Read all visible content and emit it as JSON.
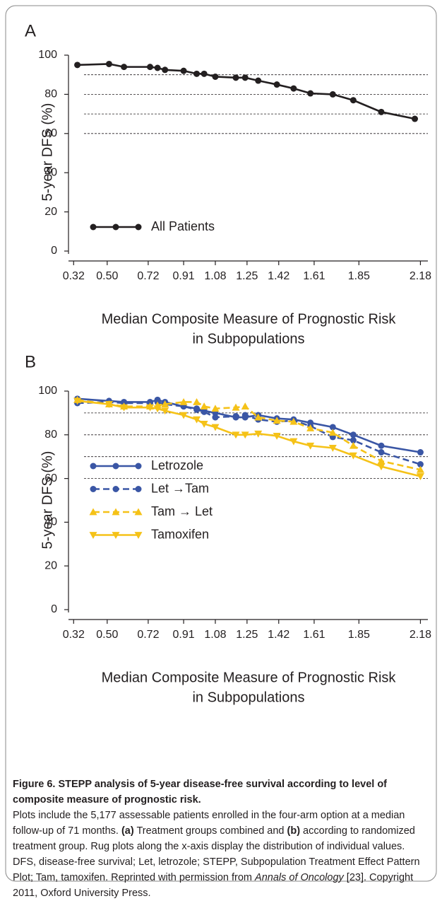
{
  "chart_data": [
    {
      "type": "line",
      "panel_label": "A",
      "ylabel": "5-year DFS (%)",
      "xlabel": [
        "Median Composite Measure of Prognostic Risk",
        "in Subpopulations"
      ],
      "x": [
        0.34,
        0.51,
        0.59,
        0.73,
        0.77,
        0.81,
        0.91,
        0.98,
        1.02,
        1.08,
        1.19,
        1.24,
        1.31,
        1.41,
        1.5,
        1.59,
        1.71,
        1.82,
        1.97,
        2.15
      ],
      "series": [
        {
          "name": "All Patients",
          "color": "#231f20",
          "dash": false,
          "marker": "circle",
          "values": [
            95,
            95.5,
            94,
            94,
            93.5,
            92.5,
            92,
            90.5,
            90.5,
            89,
            88.5,
            88.5,
            87,
            85,
            83,
            80.5,
            80,
            77,
            71,
            67.5
          ]
        }
      ],
      "xlim": [
        0.3,
        2.22
      ],
      "ylim": [
        0,
        100
      ],
      "xticks": [
        0.32,
        {
          "value": 0.5,
          "label": "0.50"
        },
        0.72,
        0.91,
        1.08,
        1.25,
        1.42,
        1.61,
        1.85,
        2.18
      ],
      "yticks": [
        0,
        20,
        40,
        60,
        80,
        100
      ],
      "reference_lines": [
        90,
        80,
        70,
        60
      ],
      "legend": "lower left"
    },
    {
      "type": "line",
      "panel_label": "B",
      "ylabel": "5-year DFS (%)",
      "xlabel": [
        "Median Composite Measure of Prognostic Risk",
        "in Subpopulations"
      ],
      "x": [
        0.34,
        0.51,
        0.59,
        0.73,
        0.77,
        0.81,
        0.91,
        0.98,
        1.02,
        1.08,
        1.19,
        1.24,
        1.31,
        1.41,
        1.5,
        1.59,
        1.71,
        1.82,
        1.97,
        2.18
      ],
      "series": [
        {
          "name": "Letrozole",
          "color": "#3a56a5",
          "dash": false,
          "marker": "circle",
          "values": [
            96.5,
            95.5,
            95,
            95,
            96,
            95,
            93,
            92,
            91,
            90,
            88,
            88,
            89,
            87.5,
            87,
            85.5,
            83.5,
            80,
            75,
            72
          ]
        },
        {
          "name": "Let →Tam",
          "color": "#3a56a5",
          "dash": true,
          "marker": "circle",
          "values": [
            94.5,
            95,
            94.5,
            94.5,
            95,
            94,
            93,
            91.5,
            90.5,
            88,
            88.5,
            89,
            87,
            86,
            86.5,
            84,
            79,
            77.5,
            72,
            66.5
          ]
        },
        {
          "name": "Tam → Let",
          "color": "#f5c218",
          "dash": true,
          "marker": "triangle-up",
          "values": [
            96,
            94,
            93,
            93,
            93.5,
            94,
            95,
            95,
            93,
            92,
            92.5,
            93,
            88,
            86.5,
            86,
            83,
            81,
            75,
            68,
            64
          ]
        },
        {
          "name": "Tamoxifen",
          "color": "#f5c218",
          "dash": false,
          "marker": "triangle-down",
          "values": [
            95.5,
            94,
            92.5,
            92.5,
            92,
            91,
            89,
            87,
            85,
            83.5,
            80,
            80,
            80.5,
            79.5,
            77,
            75,
            74,
            70.5,
            65.5,
            61
          ]
        }
      ],
      "xlim": [
        0.3,
        2.22
      ],
      "ylim": [
        0,
        100
      ],
      "xticks": [
        0.32,
        {
          "value": 0.5,
          "label": "0.50"
        },
        0.72,
        0.91,
        1.08,
        1.25,
        1.42,
        1.61,
        1.85,
        2.18
      ],
      "yticks": [
        0,
        20,
        40,
        60,
        80,
        100
      ],
      "reference_lines": [
        90,
        80,
        70,
        60
      ],
      "legend": "upper left"
    }
  ],
  "caption": {
    "title": "Figure 6. STEPP analysis of 5-year disease-free survival according to level of composite measure of prognostic risk.",
    "runs": [
      {
        "text": "Plots include the 5,177 assessable patients enrolled in the four-arm option at a median follow-up of 71 months. ",
        "style": "normal"
      },
      {
        "text": "(a)",
        "style": "bold"
      },
      {
        "text": " Treatment groups combined and ",
        "style": "normal"
      },
      {
        "text": "(b)",
        "style": "bold"
      },
      {
        "text": " according to randomized treatment group. Rug plots along the x-axis display the distribution of individual values. DFS, disease-free survival; Let, letrozole; STEPP, Subpopulation Treatment Effect Pattern Plot; Tam, tamoxifen. Reprinted with permission from ",
        "style": "normal"
      },
      {
        "text": "Annals of Oncology",
        "style": "italic"
      },
      {
        "text": " [23]. Copyright 2011, Oxford University Press.",
        "style": "normal"
      }
    ]
  }
}
